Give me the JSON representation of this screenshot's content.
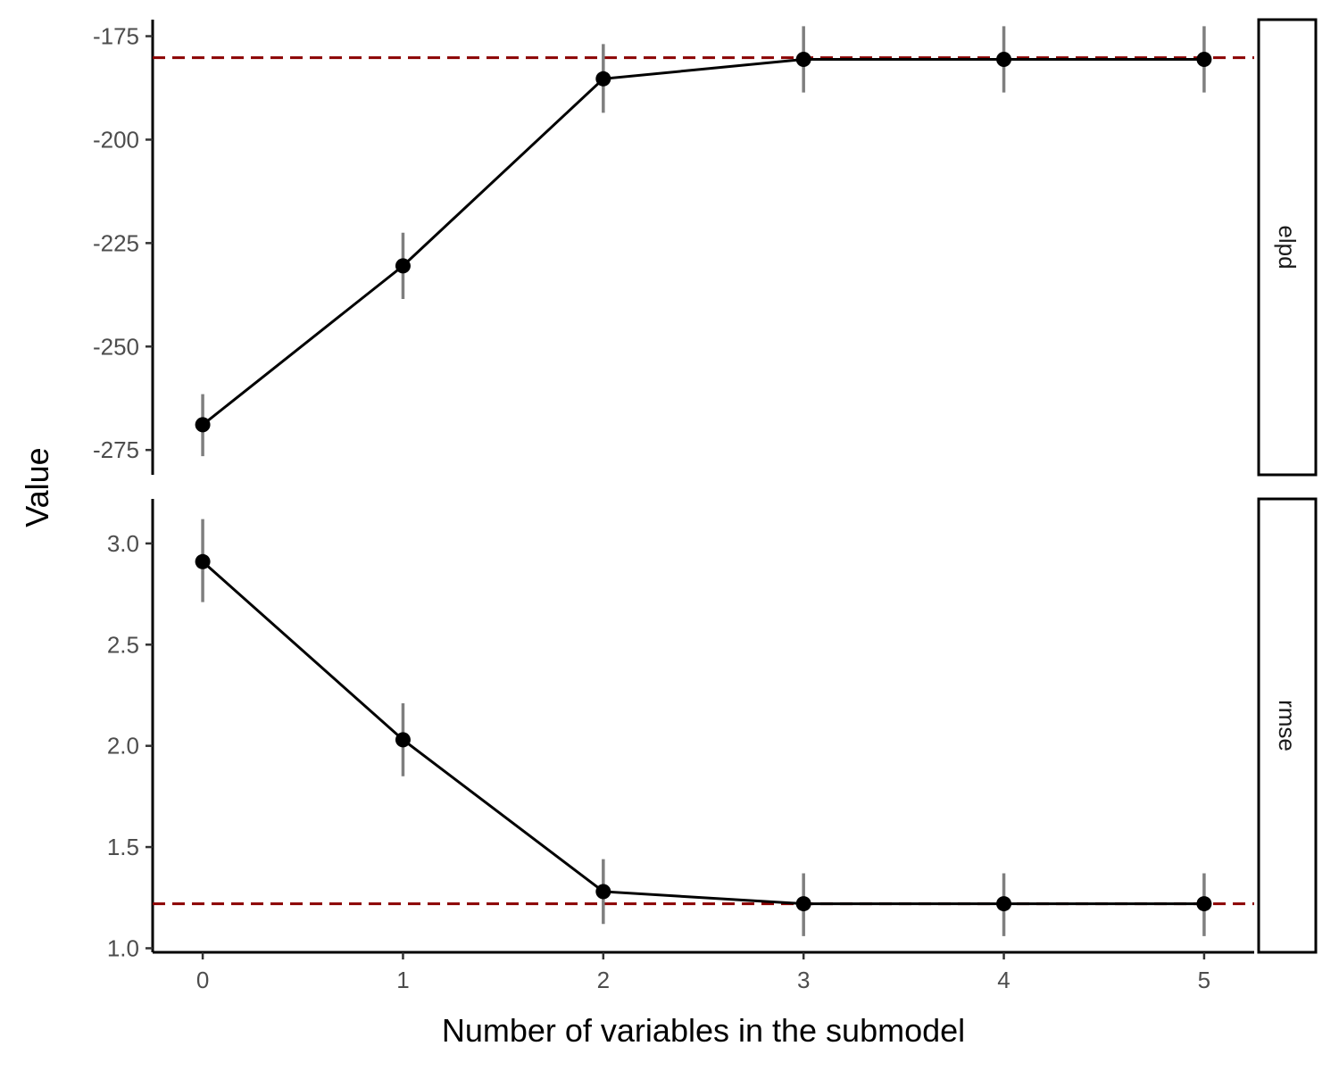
{
  "chart_data": {
    "type": "line",
    "xlabel": "Number of variables in the submodel",
    "ylabel": "Value",
    "x_ticks": [
      "0",
      "1",
      "2",
      "3",
      "4",
      "5"
    ],
    "xlim": [
      -0.25,
      5.25
    ],
    "grid": false,
    "legend": "none",
    "colors": {
      "line": "#000000",
      "point": "#000000",
      "errorbar": "#7f7f7f",
      "reference": "#8b0000"
    },
    "panels": [
      {
        "strip_label": "elpd",
        "ylim": [
          -281,
          -171
        ],
        "y_ticks": [
          -175,
          -200,
          -225,
          -250,
          -275
        ],
        "y_tick_labels": [
          "-175",
          "-200",
          "-225",
          "-250",
          "-275"
        ],
        "reference_line": -180.2,
        "x": [
          0,
          1,
          2,
          3,
          4,
          5
        ],
        "values": [
          -268.9,
          -230.5,
          -185.3,
          -180.6,
          -180.6,
          -180.6
        ],
        "lower": [
          -276.5,
          -238.5,
          -193.5,
          -188.6,
          -188.6,
          -188.6
        ],
        "upper": [
          -261.5,
          -222.5,
          -176.9,
          -172.6,
          -172.6,
          -172.6
        ]
      },
      {
        "strip_label": "rmse",
        "ylim": [
          0.98,
          3.22
        ],
        "y_ticks": [
          3.0,
          2.5,
          2.0,
          1.5,
          1.0
        ],
        "y_tick_labels": [
          "3.0",
          "2.5",
          "2.0",
          "1.5",
          "1.0"
        ],
        "reference_line": 1.22,
        "x": [
          0,
          1,
          2,
          3,
          4,
          5
        ],
        "values": [
          2.91,
          2.03,
          1.28,
          1.22,
          1.22,
          1.22
        ],
        "lower": [
          2.71,
          1.85,
          1.12,
          1.06,
          1.06,
          1.06
        ],
        "upper": [
          3.12,
          2.21,
          1.44,
          1.37,
          1.37,
          1.37
        ]
      }
    ]
  }
}
